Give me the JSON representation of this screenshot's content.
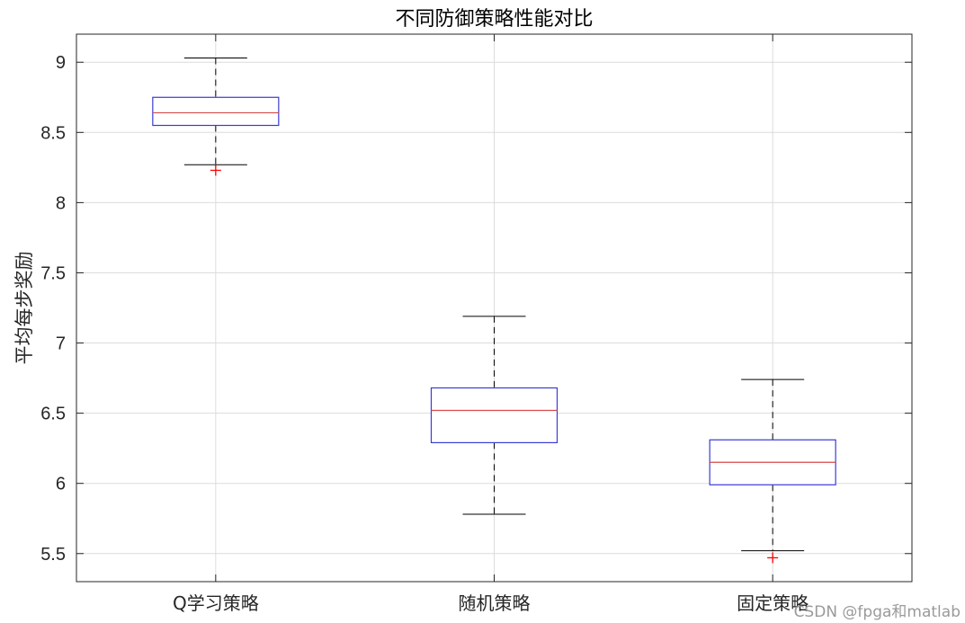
{
  "chart_data": {
    "type": "box",
    "title": "不同防御策略性能对比",
    "ylabel": "平均每步奖励",
    "xlabel": "",
    "ylim": [
      5.3,
      9.2
    ],
    "yticks": [
      "5.5",
      "6",
      "6.5",
      "7",
      "7.5",
      "8",
      "8.5",
      "9"
    ],
    "grid": true,
    "colors": {
      "box": "#3a3ad6",
      "median": "#d64a4a",
      "outlier": "#ff0000",
      "whisker": "#000000",
      "grid": "#dcdcdc"
    },
    "categories": [
      "Q学习策略",
      "随机策略",
      "固定策略"
    ],
    "boxes": [
      {
        "whisker_low": 8.27,
        "q1": 8.55,
        "median": 8.64,
        "q3": 8.75,
        "whisker_high": 9.03,
        "outliers": [
          8.23
        ]
      },
      {
        "whisker_low": 5.78,
        "q1": 6.29,
        "median": 6.52,
        "q3": 6.68,
        "whisker_high": 7.19,
        "outliers": []
      },
      {
        "whisker_low": 5.52,
        "q1": 5.99,
        "median": 6.15,
        "q3": 6.31,
        "whisker_high": 6.74,
        "outliers": [
          5.47
        ]
      }
    ]
  },
  "watermark": "CSDN @fpga和matlab"
}
